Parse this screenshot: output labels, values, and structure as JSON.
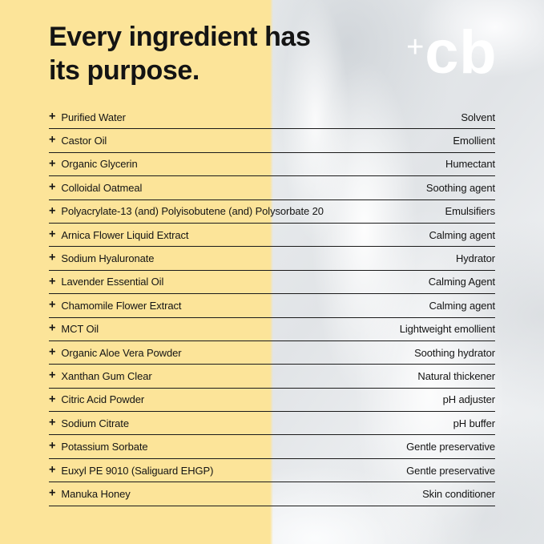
{
  "page": {
    "title": "Every ingredient has\nits purpose."
  },
  "logo": {
    "plus": "+",
    "text": "cb"
  },
  "table": {
    "plus_icon": "+",
    "rows": [
      {
        "ingredient": "Purified Water",
        "purpose": "Solvent"
      },
      {
        "ingredient": "Castor Oil",
        "purpose": "Emollient"
      },
      {
        "ingredient": "Organic Glycerin",
        "purpose": "Humectant"
      },
      {
        "ingredient": "Colloidal Oatmeal",
        "purpose": "Soothing agent"
      },
      {
        "ingredient": "Polyacrylate-13 (and) Polyisobutene (and) Polysorbate 20",
        "purpose": "Emulsifiers"
      },
      {
        "ingredient": "Arnica Flower Liquid Extract",
        "purpose": "Calming agent"
      },
      {
        "ingredient": "Sodium Hyaluronate",
        "purpose": "Hydrator"
      },
      {
        "ingredient": "Lavender Essential Oil",
        "purpose": "Calming Agent"
      },
      {
        "ingredient": "Chamomile Flower Extract",
        "purpose": "Calming agent"
      },
      {
        "ingredient": "MCT Oil",
        "purpose": "Lightweight emollient"
      },
      {
        "ingredient": "Organic Aloe Vera Powder",
        "purpose": "Soothing hydrator"
      },
      {
        "ingredient": "Xanthan Gum Clear",
        "purpose": "Natural thickener"
      },
      {
        "ingredient": "Citric Acid Powder",
        "purpose": "pH adjuster"
      },
      {
        "ingredient": "Sodium Citrate",
        "purpose": "pH buffer"
      },
      {
        "ingredient": "Potassium Sorbate",
        "purpose": "Gentle preservative"
      },
      {
        "ingredient": "Euxyl PE 9010 (Saliguard EHGP)",
        "purpose": "Gentle preservative"
      },
      {
        "ingredient": "Manuka Honey",
        "purpose": "Skin conditioner"
      }
    ]
  },
  "colors": {
    "yellow": "#FCE499",
    "text": "#141414",
    "line": "#1A1A1A",
    "logo_white": "#FFFFFF"
  }
}
